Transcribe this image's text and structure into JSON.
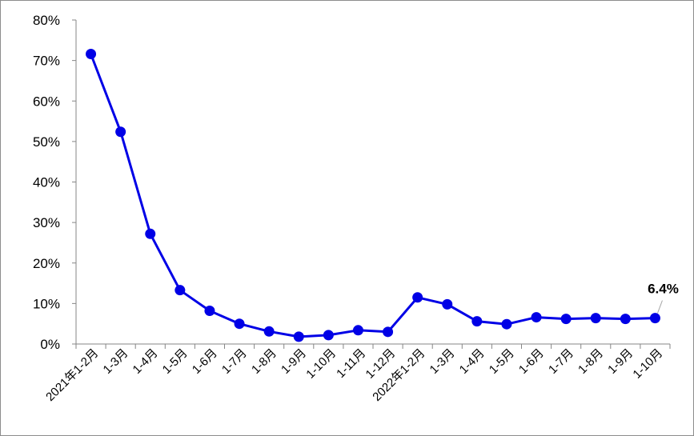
{
  "chart_data": {
    "type": "line",
    "title": "",
    "xlabel": "",
    "ylabel": "",
    "ylim": [
      0,
      80
    ],
    "y_unit": "%",
    "y_ticks": [
      0,
      10,
      20,
      30,
      40,
      50,
      60,
      70,
      80
    ],
    "y_tick_labels": [
      "0%",
      "10%",
      "20%",
      "30%",
      "40%",
      "50%",
      "60%",
      "70%",
      "80%"
    ],
    "grid": false,
    "legend": "none",
    "line_color": "#0000e6",
    "categories": [
      "2021年1-2月",
      "1-3月",
      "1-4月",
      "1-5月",
      "1-6月",
      "1-7月",
      "1-8月",
      "1-9月",
      "1-10月",
      "1-11月",
      "1-12月",
      "2022年1-2月",
      "1-3月",
      "1-4月",
      "1-5月",
      "1-6月",
      "1-7月",
      "1-8月",
      "1-9月",
      "1-10月"
    ],
    "series": [
      {
        "values": [
          71.6,
          52.4,
          27.2,
          13.3,
          8.2,
          5.0,
          3.1,
          1.8,
          2.2,
          3.4,
          3.0,
          11.5,
          9.8,
          5.6,
          4.9,
          6.6,
          6.2,
          6.4,
          6.2,
          6.4
        ]
      }
    ],
    "annotation": {
      "text": "6.4%",
      "index": 19
    }
  }
}
